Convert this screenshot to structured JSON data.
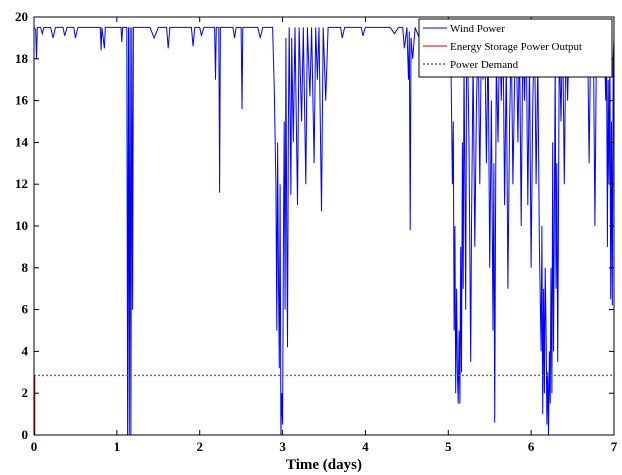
{
  "chart_data": {
    "type": "line",
    "title": "",
    "xlabel": "Time (days)",
    "ylabel": "",
    "xlim": [
      0,
      7
    ],
    "ylim": [
      0,
      20
    ],
    "xticks": [
      "0",
      "1",
      "2",
      "3",
      "4",
      "5",
      "6",
      "7"
    ],
    "yticks": [
      "0",
      "2",
      "4",
      "6",
      "8",
      "10",
      "12",
      "14",
      "16",
      "18",
      "20"
    ],
    "grid": false,
    "legend_position": "top-right",
    "series": [
      {
        "name": "Wind Power",
        "color": "#0000ff",
        "style": "solid",
        "points": [
          [
            0.0,
            19.5
          ],
          [
            0.02,
            19.4
          ],
          [
            0.03,
            18.0
          ],
          [
            0.04,
            19.5
          ],
          [
            0.08,
            19.5
          ],
          [
            0.1,
            19.2
          ],
          [
            0.12,
            19.5
          ],
          [
            0.2,
            19.5
          ],
          [
            0.23,
            19.0
          ],
          [
            0.26,
            19.5
          ],
          [
            0.35,
            19.5
          ],
          [
            0.37,
            19.1
          ],
          [
            0.4,
            19.5
          ],
          [
            0.48,
            19.5
          ],
          [
            0.5,
            19.0
          ],
          [
            0.53,
            19.5
          ],
          [
            0.8,
            19.5
          ],
          [
            0.81,
            18.4
          ],
          [
            0.82,
            19.5
          ],
          [
            0.85,
            18.5
          ],
          [
            0.86,
            19.5
          ],
          [
            1.05,
            19.5
          ],
          [
            1.06,
            18.8
          ],
          [
            1.07,
            19.5
          ],
          [
            1.12,
            19.5
          ],
          [
            1.13,
            0.0
          ],
          [
            1.14,
            19.5
          ],
          [
            1.15,
            0.0
          ],
          [
            1.16,
            19.5
          ],
          [
            1.17,
            0.0
          ],
          [
            1.18,
            19.5
          ],
          [
            1.19,
            6.0
          ],
          [
            1.2,
            19.5
          ],
          [
            1.4,
            19.5
          ],
          [
            1.45,
            19.0
          ],
          [
            1.5,
            19.5
          ],
          [
            1.6,
            19.5
          ],
          [
            1.62,
            18.5
          ],
          [
            1.64,
            19.5
          ],
          [
            1.9,
            19.5
          ],
          [
            1.92,
            18.6
          ],
          [
            1.94,
            19.5
          ],
          [
            2.0,
            19.5
          ],
          [
            2.02,
            19.1
          ],
          [
            2.05,
            19.5
          ],
          [
            2.18,
            19.5
          ],
          [
            2.19,
            17.0
          ],
          [
            2.2,
            19.5
          ],
          [
            2.23,
            19.5
          ],
          [
            2.24,
            11.6
          ],
          [
            2.25,
            19.5
          ],
          [
            2.4,
            19.5
          ],
          [
            2.42,
            19.0
          ],
          [
            2.44,
            19.5
          ],
          [
            2.5,
            19.5
          ],
          [
            2.51,
            15.6
          ],
          [
            2.52,
            19.5
          ],
          [
            2.7,
            19.5
          ],
          [
            2.73,
            19.0
          ],
          [
            2.76,
            19.5
          ],
          [
            2.88,
            19.5
          ],
          [
            2.9,
            16.5
          ],
          [
            2.92,
            12.0
          ],
          [
            2.93,
            5.0
          ],
          [
            2.94,
            14.0
          ],
          [
            2.95,
            8.0
          ],
          [
            2.96,
            3.2
          ],
          [
            2.97,
            12.0
          ],
          [
            2.98,
            0.0
          ],
          [
            2.99,
            2.0
          ],
          [
            3.0,
            0.5
          ],
          [
            3.01,
            9.0
          ],
          [
            3.02,
            15.0
          ],
          [
            3.03,
            6.0
          ],
          [
            3.04,
            19.0
          ],
          [
            3.05,
            10.0
          ],
          [
            3.06,
            4.2
          ],
          [
            3.07,
            15.0
          ],
          [
            3.08,
            19.5
          ],
          [
            3.1,
            11.5
          ],
          [
            3.11,
            19.0
          ],
          [
            3.13,
            14.0
          ],
          [
            3.15,
            19.5
          ],
          [
            3.18,
            11.0
          ],
          [
            3.2,
            19.5
          ],
          [
            3.23,
            15.0
          ],
          [
            3.25,
            19.5
          ],
          [
            3.28,
            12.0
          ],
          [
            3.3,
            19.5
          ],
          [
            3.33,
            16.2
          ],
          [
            3.35,
            19.5
          ],
          [
            3.38,
            13.0
          ],
          [
            3.4,
            19.5
          ],
          [
            3.42,
            17.0
          ],
          [
            3.44,
            19.5
          ],
          [
            3.47,
            10.7
          ],
          [
            3.49,
            19.5
          ],
          [
            3.52,
            16.0
          ],
          [
            3.55,
            19.5
          ],
          [
            3.7,
            19.5
          ],
          [
            3.72,
            19.0
          ],
          [
            3.75,
            19.5
          ],
          [
            3.95,
            19.5
          ],
          [
            3.97,
            19.1
          ],
          [
            4.0,
            19.5
          ],
          [
            4.3,
            19.5
          ],
          [
            4.35,
            19.2
          ],
          [
            4.4,
            19.5
          ],
          [
            4.45,
            19.5
          ],
          [
            4.47,
            18.5
          ],
          [
            4.5,
            19.5
          ],
          [
            4.52,
            17.0
          ],
          [
            4.53,
            19.3
          ],
          [
            4.54,
            9.8
          ],
          [
            4.55,
            19.0
          ],
          [
            4.57,
            18.0
          ],
          [
            4.6,
            19.5
          ],
          [
            4.65,
            19.0
          ],
          [
            4.7,
            19.5
          ],
          [
            4.75,
            18.8
          ],
          [
            4.8,
            19.5
          ],
          [
            4.85,
            19.0
          ],
          [
            4.9,
            19.5
          ],
          [
            5.0,
            19.5
          ],
          [
            5.03,
            18.5
          ],
          [
            5.05,
            12.0
          ],
          [
            5.06,
            15.0
          ],
          [
            5.07,
            5.0
          ],
          [
            5.08,
            10.0
          ],
          [
            5.09,
            2.0
          ],
          [
            5.1,
            7.0
          ],
          [
            5.11,
            3.0
          ],
          [
            5.12,
            1.5
          ],
          [
            5.13,
            5.0
          ],
          [
            5.14,
            1.5
          ],
          [
            5.15,
            9.0
          ],
          [
            5.16,
            3.0
          ],
          [
            5.17,
            14.0
          ],
          [
            5.18,
            7.0
          ],
          [
            5.19,
            18.0
          ],
          [
            5.2,
            12.0
          ],
          [
            5.21,
            6.0
          ],
          [
            5.22,
            17.0
          ],
          [
            5.23,
            19.5
          ],
          [
            5.25,
            14.0
          ],
          [
            5.27,
            3.5
          ],
          [
            5.28,
            10.0
          ],
          [
            5.3,
            18.0
          ],
          [
            5.32,
            9.0
          ],
          [
            5.34,
            16.0
          ],
          [
            5.36,
            19.3
          ],
          [
            5.38,
            12.0
          ],
          [
            5.4,
            19.0
          ],
          [
            5.42,
            17.0
          ],
          [
            5.44,
            19.5
          ],
          [
            5.46,
            13.0
          ],
          [
            5.48,
            19.0
          ],
          [
            5.5,
            8.0
          ],
          [
            5.52,
            16.0
          ],
          [
            5.54,
            5.0
          ],
          [
            5.55,
            13.0
          ],
          [
            5.56,
            0.6
          ],
          [
            5.57,
            10.0
          ],
          [
            5.58,
            18.0
          ],
          [
            5.6,
            14.0
          ],
          [
            5.62,
            19.5
          ],
          [
            5.64,
            16.0
          ],
          [
            5.66,
            19.5
          ],
          [
            5.68,
            11.0
          ],
          [
            5.7,
            18.0
          ],
          [
            5.72,
            7.0
          ],
          [
            5.74,
            15.0
          ],
          [
            5.76,
            19.0
          ],
          [
            5.78,
            12.0
          ],
          [
            5.8,
            17.0
          ],
          [
            5.82,
            19.5
          ],
          [
            5.84,
            14.0
          ],
          [
            5.86,
            19.0
          ],
          [
            5.88,
            10.0
          ],
          [
            5.9,
            19.3
          ],
          [
            5.92,
            16.0
          ],
          [
            5.94,
            19.5
          ],
          [
            5.96,
            11.0
          ],
          [
            5.98,
            18.0
          ],
          [
            6.0,
            8.0
          ],
          [
            6.02,
            16.0
          ],
          [
            6.04,
            19.5
          ],
          [
            6.06,
            12.0
          ],
          [
            6.08,
            18.0
          ],
          [
            6.1,
            9.0
          ],
          [
            6.12,
            4.0
          ],
          [
            6.13,
            10.0
          ],
          [
            6.14,
            1.0
          ],
          [
            6.15,
            7.0
          ],
          [
            6.16,
            2.0
          ],
          [
            6.17,
            8.0
          ],
          [
            6.18,
            5.0
          ],
          [
            6.19,
            0.5
          ],
          [
            6.2,
            3.0
          ],
          [
            6.21,
            0.0
          ],
          [
            6.22,
            4.0
          ],
          [
            6.23,
            1.5
          ],
          [
            6.24,
            8.0
          ],
          [
            6.25,
            2.0
          ],
          [
            6.26,
            14.0
          ],
          [
            6.27,
            4.0
          ],
          [
            6.28,
            10.0
          ],
          [
            6.29,
            18.0
          ],
          [
            6.3,
            7.0
          ],
          [
            6.31,
            13.0
          ],
          [
            6.32,
            3.5
          ],
          [
            6.33,
            11.0
          ],
          [
            6.34,
            19.0
          ],
          [
            6.36,
            15.0
          ],
          [
            6.38,
            19.5
          ],
          [
            6.4,
            12.0
          ],
          [
            6.42,
            19.0
          ],
          [
            6.44,
            16.0
          ],
          [
            6.46,
            19.5
          ],
          [
            6.5,
            19.5
          ],
          [
            6.52,
            18.0
          ],
          [
            6.54,
            19.5
          ],
          [
            6.6,
            19.5
          ],
          [
            6.62,
            18.5
          ],
          [
            6.64,
            19.5
          ],
          [
            6.68,
            19.5
          ],
          [
            6.7,
            13.0
          ],
          [
            6.72,
            19.5
          ],
          [
            6.75,
            19.5
          ],
          [
            6.77,
            10.0
          ],
          [
            6.79,
            19.5
          ],
          [
            6.82,
            19.5
          ],
          [
            6.85,
            18.5
          ],
          [
            6.88,
            19.5
          ],
          [
            6.9,
            16.0
          ],
          [
            6.91,
            19.0
          ],
          [
            6.92,
            9.0
          ],
          [
            6.93,
            17.0
          ],
          [
            6.94,
            12.0
          ],
          [
            6.95,
            19.0
          ],
          [
            6.96,
            6.5
          ],
          [
            6.97,
            15.0
          ],
          [
            6.98,
            6.2
          ],
          [
            6.99,
            18.0
          ],
          [
            7.0,
            19.0
          ]
        ]
      },
      {
        "name": "Energy Storage Power Output",
        "color": "#cc0000",
        "style": "solid",
        "points": [
          [
            0.0,
            0.0
          ],
          [
            0.0,
            2.8
          ],
          [
            0.01,
            2.8
          ],
          [
            0.01,
            0.0
          ],
          [
            0.02,
            0.0
          ],
          [
            7.0,
            0.0
          ]
        ]
      },
      {
        "name": "Power Demand",
        "color": "#2e8b2e",
        "style": "dotted",
        "points": [
          [
            0.0,
            2.85
          ],
          [
            7.0,
            2.85
          ]
        ]
      }
    ]
  }
}
